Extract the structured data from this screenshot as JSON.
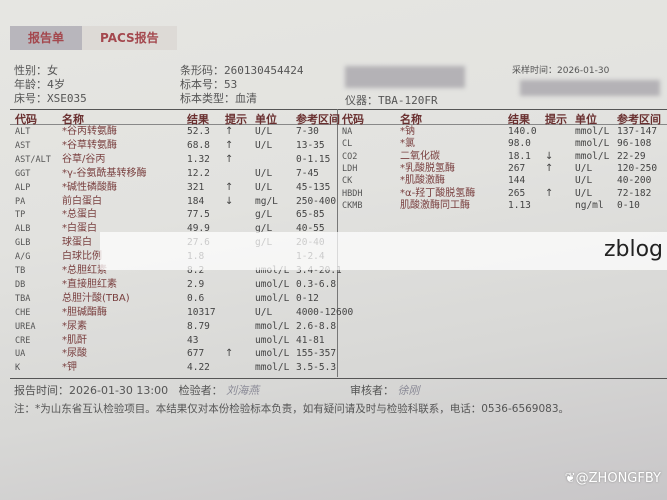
{
  "tabs": [
    {
      "label": "报告单",
      "active": true
    },
    {
      "label": "PACS报告",
      "active": false
    }
  ],
  "patient": {
    "gender": "性别：女",
    "age": "年龄：4岁",
    "bed": "床号：XSE035",
    "barcode": "条形码：260130454424",
    "specimen_no": "标本号：53",
    "specimen_type": "标本类型：血清",
    "instrument": "仪器：TBA-120FR",
    "collect_time": "采样时间：2026-01-30"
  },
  "table_headers": {
    "code": "代码",
    "name": "名称",
    "result": "结果",
    "hint": "提示",
    "unit": "单位",
    "range": "参考区间"
  },
  "left_rows": [
    {
      "code": "ALT",
      "name": "*谷丙转氨酶",
      "result": "52.3",
      "hint": "↑",
      "unit": "U/L",
      "range": "7-30"
    },
    {
      "code": "AST",
      "name": "*谷草转氨酶",
      "result": "68.8",
      "hint": "↑",
      "unit": "U/L",
      "range": "13-35"
    },
    {
      "code": "AST/ALT",
      "name": "谷草/谷丙",
      "result": "1.32",
      "hint": "↑",
      "unit": "",
      "range": "0-1.15"
    },
    {
      "code": "GGT",
      "name": "*γ-谷氨酰基转移酶",
      "result": "12.2",
      "hint": "",
      "unit": "U/L",
      "range": "7-45"
    },
    {
      "code": "ALP",
      "name": "*碱性磷酸酶",
      "result": "321",
      "hint": "↑",
      "unit": "U/L",
      "range": "45-135"
    },
    {
      "code": "PA",
      "name": "前白蛋白",
      "result": "184",
      "hint": "↓",
      "unit": "mg/L",
      "range": "250-400"
    },
    {
      "code": "TP",
      "name": "*总蛋白",
      "result": "77.5",
      "hint": "",
      "unit": "g/L",
      "range": "65-85"
    },
    {
      "code": "ALB",
      "name": "*白蛋白",
      "result": "49.9",
      "hint": "",
      "unit": "g/L",
      "range": "40-55"
    },
    {
      "code": "GLB",
      "name": "球蛋白",
      "result": "27.6",
      "hint": "",
      "unit": "g/L",
      "range": "20-40"
    },
    {
      "code": "A/G",
      "name": "白球比例",
      "result": "1.8",
      "hint": "",
      "unit": "",
      "range": "1-2.4"
    },
    {
      "code": "TB",
      "name": "*总胆红素",
      "result": "8.2",
      "hint": "",
      "unit": "umol/L",
      "range": "3.4-20.1"
    },
    {
      "code": "DB",
      "name": "*直接胆红素",
      "result": "2.9",
      "hint": "",
      "unit": "umol/L",
      "range": "0.3-6.8"
    },
    {
      "code": "TBA",
      "name": "总胆汁酸(TBA)",
      "result": "0.6",
      "hint": "",
      "unit": "umol/L",
      "range": "0-12"
    },
    {
      "code": "CHE",
      "name": "*胆碱酯酶",
      "result": "10317",
      "hint": "",
      "unit": "U/L",
      "range": "4000-12600"
    },
    {
      "code": "UREA",
      "name": "*尿素",
      "result": "8.79",
      "hint": "",
      "unit": "mmol/L",
      "range": "2.6-8.8"
    },
    {
      "code": "CRE",
      "name": "*肌酐",
      "result": "43",
      "hint": "",
      "unit": "umol/L",
      "range": "41-81"
    },
    {
      "code": "UA",
      "name": "*尿酸",
      "result": "677",
      "hint": "↑",
      "unit": "umol/L",
      "range": "155-357"
    },
    {
      "code": "K",
      "name": "*钾",
      "result": "4.22",
      "hint": "",
      "unit": "mmol/L",
      "range": "3.5-5.3"
    }
  ],
  "right_rows": [
    {
      "code": "NA",
      "name": "*钠",
      "result": "140.0",
      "hint": "",
      "unit": "mmol/L",
      "range": "137-147"
    },
    {
      "code": "CL",
      "name": "*氯",
      "result": "98.0",
      "hint": "",
      "unit": "mmol/L",
      "range": "96-108"
    },
    {
      "code": "CO2",
      "name": "二氧化碳",
      "result": "18.1",
      "hint": "↓",
      "unit": "mmol/L",
      "range": "22-29"
    },
    {
      "code": "LDH",
      "name": "*乳酸脱氢酶",
      "result": "267",
      "hint": "↑",
      "unit": "U/L",
      "range": "120-250"
    },
    {
      "code": "CK",
      "name": "*肌酸激酶",
      "result": "144",
      "hint": "",
      "unit": "U/L",
      "range": "40-200"
    },
    {
      "code": "HBDH",
      "name": "*α-羟丁酸脱氢酶",
      "result": "265",
      "hint": "↑",
      "unit": "U/L",
      "range": "72-182"
    },
    {
      "code": "CKMB",
      "name": "肌酸激酶同工酶",
      "result": "1.13",
      "hint": "",
      "unit": "ng/ml",
      "range": "0-10"
    }
  ],
  "footer": {
    "report_time": "报告时间：2026-01-30 13:00",
    "tester_label": "检验者：",
    "tester_sig": "刘海燕",
    "reviewer_label": "审核者：",
    "reviewer_sig": "徐刚",
    "note": "注：*为山东省互认检验项目。本结果仅对本份检验标本负责，如有疑问请及时与检验科联系，电话：0536-6569083。"
  },
  "watermarks": {
    "band": "zblog",
    "corner": "@ZHONGFBY"
  },
  "colors": {
    "tab_text": "#a4484e",
    "arrow": "#444444"
  }
}
